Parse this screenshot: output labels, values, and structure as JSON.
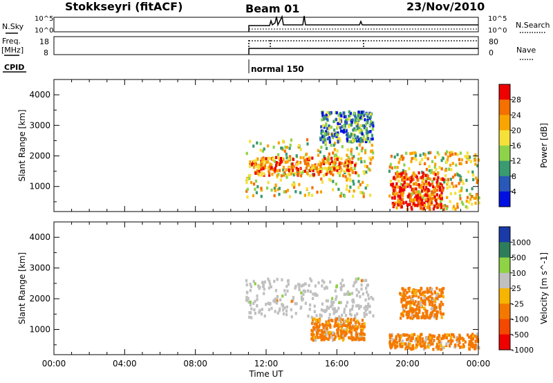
{
  "header": {
    "station": "Stokkseyri (fitACF)",
    "beam": "Beam 01",
    "date": "23/Nov/2010"
  },
  "status_panel": {
    "nsky_label": "N.Sky",
    "noise_ticks": [
      "10^5",
      "10^0"
    ],
    "nsearch_label": "N.Search",
    "freq_label": "Freq.",
    "freq_unit": "[MHz]",
    "freq_ticks": [
      "18",
      "8"
    ],
    "nave_label": "Nave",
    "nave_ticks": [
      "80",
      "0"
    ],
    "cpid_label": "CPID",
    "cpid_value": "normal 150"
  },
  "chart_data": [
    {
      "type": "heatmap",
      "name": "power",
      "xlabel": "",
      "ylabel": "Slant Range [km]",
      "xlim": [
        0,
        24
      ],
      "ylim": [
        180,
        4500
      ],
      "y_ticks": [
        "1000",
        "2000",
        "3000",
        "4000"
      ],
      "colorbar_label": "Power [dB]",
      "colorbar_ticks": [
        "28",
        "24",
        "20",
        "16",
        "12",
        "8",
        "4"
      ],
      "colorbar_colors": [
        "#ee0000",
        "#f47000",
        "#f9a400",
        "#f6e03a",
        "#8ed24a",
        "#3a9a70",
        "#2a58b8",
        "#0010e0"
      ],
      "regions": [
        {
          "x": [
            10.8,
            18.0
          ],
          "y": [
            700,
            2600
          ],
          "level": 0.55
        },
        {
          "x": [
            11.0,
            17.0
          ],
          "y": [
            1400,
            2000
          ],
          "level": 0.75
        },
        {
          "x": [
            15.0,
            18.0
          ],
          "y": [
            2500,
            3500
          ],
          "level": 0.3
        },
        {
          "x": [
            18.9,
            24.0
          ],
          "y": [
            300,
            2200
          ],
          "level": 0.6
        },
        {
          "x": [
            19.0,
            22.0
          ],
          "y": [
            300,
            1500
          ],
          "level": 0.9
        }
      ]
    },
    {
      "type": "heatmap",
      "name": "velocity",
      "xlabel": "Time UT",
      "ylabel": "Slant Range [km]",
      "xlim": [
        0,
        24
      ],
      "ylim": [
        180,
        4500
      ],
      "x_ticks": [
        "00:00",
        "04:00",
        "08:00",
        "12:00",
        "16:00",
        "20:00",
        "00:00"
      ],
      "y_ticks": [
        "1000",
        "2000",
        "3000",
        "4000"
      ],
      "colorbar_label": "Velocity [m s^-1]",
      "colorbar_ticks": [
        "1000",
        "500",
        "100",
        "25",
        "-25",
        "-100",
        "-500",
        "-1000"
      ],
      "colorbar_colors": [
        "#1a3aa8",
        "#2e7d5a",
        "#8fd245",
        "#c0c0c0",
        "#f7b400",
        "#f47800",
        "#f44800",
        "#ee0000"
      ],
      "regions": [
        {
          "x": [
            10.8,
            18.0
          ],
          "y": [
            1400,
            2700
          ],
          "level": "ground"
        },
        {
          "x": [
            14.5,
            17.5
          ],
          "y": [
            700,
            1400
          ],
          "level": "away"
        },
        {
          "x": [
            18.9,
            24.0
          ],
          "y": [
            400,
            900
          ],
          "level": "away"
        },
        {
          "x": [
            19.5,
            22.0
          ],
          "y": [
            1400,
            2400
          ],
          "level": "away"
        }
      ]
    }
  ]
}
